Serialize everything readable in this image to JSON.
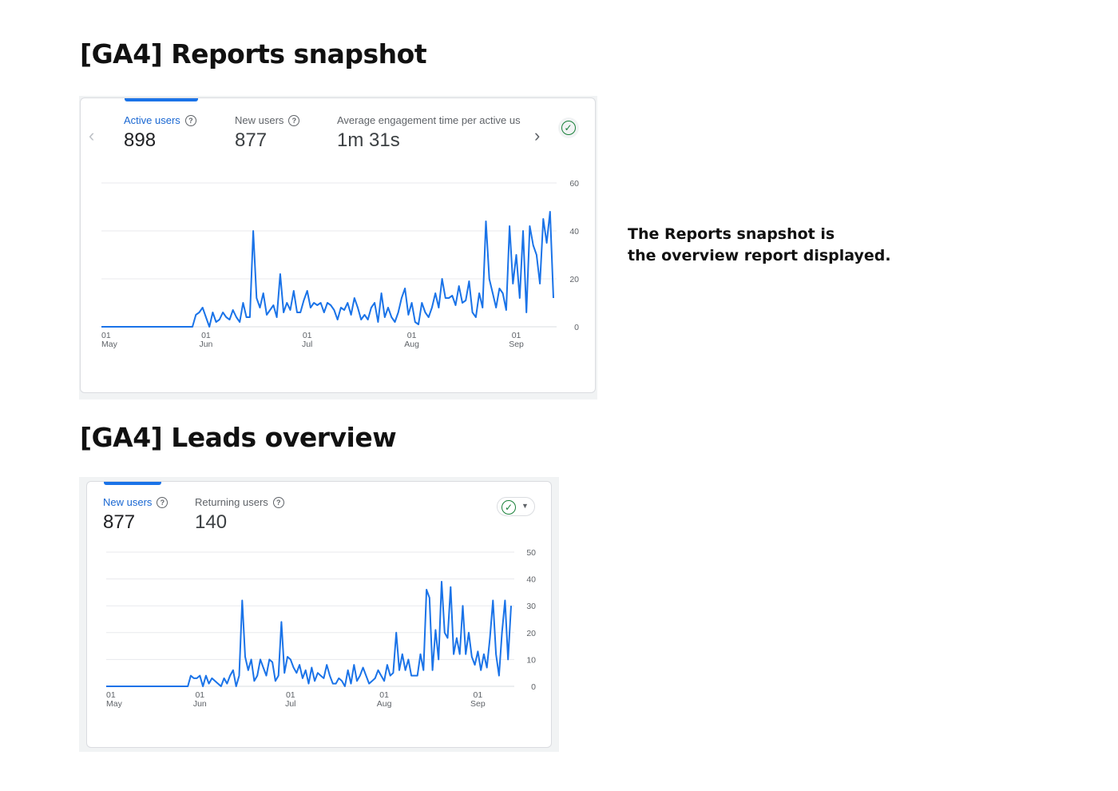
{
  "section1": {
    "title": "[GA4] Reports snapshot"
  },
  "section2": {
    "title": "[GA4] Leads overview"
  },
  "note": {
    "line1": "The Reports snapshot is",
    "line2": "the overview report displayed."
  },
  "icons": {
    "help": "help-circle-icon",
    "check": "check-circle-icon",
    "prev": "chevron-left-icon",
    "next": "chevron-right-icon",
    "caret": "caret-down-icon"
  },
  "card1": {
    "metrics": [
      {
        "label": "Active users",
        "value": "898",
        "active": true
      },
      {
        "label": "New users",
        "value": "877",
        "active": false
      },
      {
        "label": "Average engagement time per active us",
        "value": "1m 31s",
        "active": false
      }
    ]
  },
  "card2": {
    "metrics": [
      {
        "label": "New users",
        "value": "877",
        "active": true
      },
      {
        "label": "Returning users",
        "value": "140",
        "active": false
      }
    ]
  },
  "chart_data": [
    {
      "type": "line",
      "y_ticks": [
        0,
        20,
        40,
        60
      ],
      "ylim": [
        0,
        60
      ],
      "x_ticks": [
        {
          "day": "01",
          "month": "May"
        },
        {
          "day": "01",
          "month": "Jun"
        },
        {
          "day": "01",
          "month": "Jul"
        },
        {
          "day": "01",
          "month": "Aug"
        },
        {
          "day": "01",
          "month": "Sep"
        }
      ],
      "xlim": [
        "2023-05-01",
        "2023-09-12"
      ],
      "grid": true,
      "color": "#1a73e8",
      "series": [
        {
          "x": [
            "2023-05-01",
            "2023-05-05",
            "2023-05-10",
            "2023-05-15",
            "2023-05-20",
            "2023-05-25",
            "2023-05-28",
            "2023-05-29",
            "2023-05-30",
            "2023-05-31",
            "2023-06-01",
            "2023-06-02",
            "2023-06-03",
            "2023-06-04",
            "2023-06-05",
            "2023-06-06",
            "2023-06-07",
            "2023-06-08",
            "2023-06-09",
            "2023-06-10",
            "2023-06-11",
            "2023-06-12",
            "2023-06-13",
            "2023-06-14",
            "2023-06-15",
            "2023-06-16",
            "2023-06-17",
            "2023-06-18",
            "2023-06-19",
            "2023-06-20",
            "2023-06-21",
            "2023-06-22",
            "2023-06-23",
            "2023-06-24",
            "2023-06-25",
            "2023-06-26",
            "2023-06-27",
            "2023-06-28",
            "2023-06-29",
            "2023-06-30",
            "2023-07-01",
            "2023-07-02",
            "2023-07-03",
            "2023-07-04",
            "2023-07-05",
            "2023-07-06",
            "2023-07-07",
            "2023-07-08",
            "2023-07-09",
            "2023-07-10",
            "2023-07-11",
            "2023-07-12",
            "2023-07-13",
            "2023-07-14",
            "2023-07-15",
            "2023-07-16",
            "2023-07-17",
            "2023-07-18",
            "2023-07-19",
            "2023-07-20",
            "2023-07-21",
            "2023-07-22",
            "2023-07-23",
            "2023-07-24",
            "2023-07-25",
            "2023-07-26",
            "2023-07-27",
            "2023-07-28",
            "2023-07-29",
            "2023-07-30",
            "2023-07-31",
            "2023-08-01",
            "2023-08-02",
            "2023-08-03",
            "2023-08-04",
            "2023-08-05",
            "2023-08-06",
            "2023-08-07",
            "2023-08-08",
            "2023-08-09",
            "2023-08-10",
            "2023-08-11",
            "2023-08-12",
            "2023-08-13",
            "2023-08-14",
            "2023-08-15",
            "2023-08-16",
            "2023-08-17",
            "2023-08-18",
            "2023-08-19",
            "2023-08-20",
            "2023-08-21",
            "2023-08-22",
            "2023-08-23",
            "2023-08-24",
            "2023-08-25",
            "2023-08-26",
            "2023-08-27",
            "2023-08-28",
            "2023-08-29",
            "2023-08-30",
            "2023-08-31",
            "2023-09-01",
            "2023-09-02",
            "2023-09-03",
            "2023-09-04",
            "2023-09-05",
            "2023-09-06",
            "2023-09-07",
            "2023-09-08",
            "2023-09-09",
            "2023-09-10",
            "2023-09-11",
            "2023-09-12"
          ],
          "y": [
            0,
            0,
            0,
            0,
            0,
            0,
            0,
            5,
            6,
            8,
            4,
            0,
            6,
            2,
            3,
            6,
            4,
            3,
            7,
            4,
            2,
            10,
            4,
            4,
            40,
            12,
            8,
            14,
            5,
            7,
            9,
            4,
            22,
            6,
            10,
            7,
            15,
            6,
            6,
            11,
            15,
            8,
            10,
            9,
            10,
            6,
            10,
            9,
            7,
            3,
            8,
            7,
            10,
            5,
            12,
            8,
            3,
            5,
            3,
            8,
            10,
            2,
            14,
            4,
            8,
            4,
            2,
            6,
            12,
            16,
            5,
            10,
            2,
            1,
            10,
            6,
            4,
            8,
            14,
            8,
            20,
            12,
            12,
            13,
            9,
            17,
            10,
            11,
            19,
            6,
            4,
            14,
            8,
            44,
            20,
            14,
            8,
            16,
            14,
            7,
            42,
            18,
            30,
            12,
            40,
            6,
            42,
            34,
            30,
            18,
            45,
            35,
            48,
            12
          ]
        }
      ]
    },
    {
      "type": "line",
      "y_ticks": [
        0,
        10,
        20,
        30,
        40,
        50
      ],
      "ylim": [
        0,
        50
      ],
      "x_ticks": [
        {
          "day": "01",
          "month": "May"
        },
        {
          "day": "01",
          "month": "Jun"
        },
        {
          "day": "01",
          "month": "Jul"
        },
        {
          "day": "01",
          "month": "Aug"
        },
        {
          "day": "01",
          "month": "Sep"
        }
      ],
      "xlim": [
        "2023-05-01",
        "2023-09-12"
      ],
      "grid": true,
      "color": "#1a73e8",
      "series": [
        {
          "x": [
            "2023-05-01",
            "2023-05-05",
            "2023-05-10",
            "2023-05-15",
            "2023-05-20",
            "2023-05-25",
            "2023-05-28",
            "2023-05-29",
            "2023-05-30",
            "2023-05-31",
            "2023-06-01",
            "2023-06-02",
            "2023-06-03",
            "2023-06-04",
            "2023-06-05",
            "2023-06-06",
            "2023-06-07",
            "2023-06-08",
            "2023-06-09",
            "2023-06-10",
            "2023-06-11",
            "2023-06-12",
            "2023-06-13",
            "2023-06-14",
            "2023-06-15",
            "2023-06-16",
            "2023-06-17",
            "2023-06-18",
            "2023-06-19",
            "2023-06-20",
            "2023-06-21",
            "2023-06-22",
            "2023-06-23",
            "2023-06-24",
            "2023-06-25",
            "2023-06-26",
            "2023-06-27",
            "2023-06-28",
            "2023-06-29",
            "2023-06-30",
            "2023-07-01",
            "2023-07-02",
            "2023-07-03",
            "2023-07-04",
            "2023-07-05",
            "2023-07-06",
            "2023-07-07",
            "2023-07-08",
            "2023-07-09",
            "2023-07-10",
            "2023-07-11",
            "2023-07-12",
            "2023-07-13",
            "2023-07-14",
            "2023-07-15",
            "2023-07-16",
            "2023-07-17",
            "2023-07-18",
            "2023-07-19",
            "2023-07-20",
            "2023-07-21",
            "2023-07-22",
            "2023-07-23",
            "2023-07-24",
            "2023-07-25",
            "2023-07-26",
            "2023-07-27",
            "2023-07-28",
            "2023-07-29",
            "2023-07-30",
            "2023-07-31",
            "2023-08-01",
            "2023-08-02",
            "2023-08-03",
            "2023-08-04",
            "2023-08-05",
            "2023-08-06",
            "2023-08-07",
            "2023-08-08",
            "2023-08-09",
            "2023-08-10",
            "2023-08-11",
            "2023-08-12",
            "2023-08-13",
            "2023-08-14",
            "2023-08-15",
            "2023-08-16",
            "2023-08-17",
            "2023-08-18",
            "2023-08-19",
            "2023-08-20",
            "2023-08-21",
            "2023-08-22",
            "2023-08-23",
            "2023-08-24",
            "2023-08-25",
            "2023-08-26",
            "2023-08-27",
            "2023-08-28",
            "2023-08-29",
            "2023-08-30",
            "2023-08-31",
            "2023-09-01",
            "2023-09-02",
            "2023-09-03",
            "2023-09-04",
            "2023-09-05",
            "2023-09-06",
            "2023-09-07",
            "2023-09-08",
            "2023-09-09",
            "2023-09-10",
            "2023-09-11",
            "2023-09-12"
          ],
          "y": [
            0,
            0,
            0,
            0,
            0,
            0,
            0,
            4,
            3,
            3,
            4,
            0,
            4,
            1,
            3,
            2,
            1,
            0,
            3,
            1,
            4,
            6,
            0,
            4,
            32,
            11,
            6,
            10,
            2,
            4,
            10,
            7,
            4,
            10,
            9,
            2,
            4,
            24,
            5,
            11,
            10,
            7,
            5,
            8,
            3,
            6,
            1,
            7,
            2,
            5,
            4,
            3,
            8,
            4,
            1,
            1,
            3,
            2,
            0,
            6,
            1,
            8,
            2,
            4,
            7,
            4,
            1,
            2,
            3,
            6,
            4,
            2,
            8,
            4,
            5,
            20,
            6,
            12,
            6,
            10,
            4,
            4,
            4,
            12,
            6,
            36,
            33,
            6,
            21,
            10,
            39,
            20,
            18,
            37,
            12,
            18,
            12,
            30,
            12,
            20,
            11,
            8,
            13,
            6,
            12,
            7,
            18,
            32,
            12,
            4,
            20,
            32,
            10,
            30
          ]
        }
      ]
    }
  ]
}
